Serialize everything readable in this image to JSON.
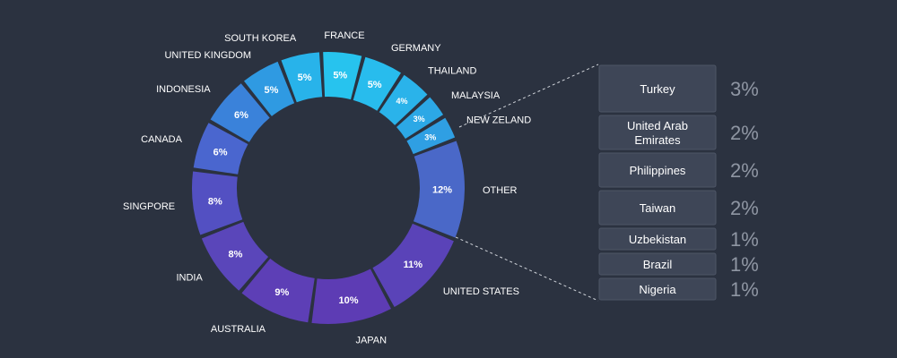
{
  "chart_data": [
    {
      "type": "donut",
      "slices": [
        {
          "label": "FRANCE",
          "value": 5,
          "display": "5%",
          "color": "#27c3ee"
        },
        {
          "label": "GERMANY",
          "value": 5,
          "display": "5%",
          "color": "#28bced"
        },
        {
          "label": "THAILAND",
          "value": 4,
          "display": "4%",
          "color": "#2ab3ea"
        },
        {
          "label": "MALAYSIA",
          "value": 3,
          "display": "3%",
          "color": "#2ca8e6"
        },
        {
          "label": "NEW ZELAND",
          "value": 3,
          "display": "3%",
          "color": "#2f9fe3"
        },
        {
          "label": "OTHER",
          "value": 12,
          "display": "12%",
          "color": "#4a68c8"
        },
        {
          "label": "UNITED STATES",
          "value": 11,
          "display": "11%",
          "color": "#5a43b8"
        },
        {
          "label": "JAPAN",
          "value": 10,
          "display": "10%",
          "color": "#5d3cb4"
        },
        {
          "label": "AUSTRALIA",
          "value": 9,
          "display": "9%",
          "color": "#5d3fb6"
        },
        {
          "label": "INDIA",
          "value": 8,
          "display": "8%",
          "color": "#5a46ba"
        },
        {
          "label": "SINGPORE",
          "value": 8,
          "display": "8%",
          "color": "#5350c2"
        },
        {
          "label": "CANADA",
          "value": 6,
          "display": "6%",
          "color": "#4a66cf"
        },
        {
          "label": "INDONESIA",
          "value": 6,
          "display": "6%",
          "color": "#3a82da"
        },
        {
          "label": "UNITED KINGDOM",
          "value": 5,
          "display": "5%",
          "color": "#2f9ae2"
        },
        {
          "label": "SOUTH KOREA",
          "value": 5,
          "display": "5%",
          "color": "#28b3ea"
        }
      ]
    },
    {
      "type": "table",
      "rows": [
        {
          "country": [
            "Turkey"
          ],
          "value": "3%"
        },
        {
          "country": [
            "United Arab",
            "Emirates"
          ],
          "value": "2%"
        },
        {
          "country": [
            "Philippines"
          ],
          "value": "2%"
        },
        {
          "country": [
            "Taiwan"
          ],
          "value": "2%"
        },
        {
          "country": [
            "Uzbekistan"
          ],
          "value": "1%"
        },
        {
          "country": [
            "Brazil"
          ],
          "value": "1%"
        },
        {
          "country": [
            "Nigeria"
          ],
          "value": "1%"
        }
      ]
    }
  ],
  "colors": {
    "background": "#2b3240",
    "box_fill": "#3e4657",
    "box_stroke": "#4d5566",
    "leader_line": "#d0d4da",
    "value_text": "#8f96a3"
  }
}
